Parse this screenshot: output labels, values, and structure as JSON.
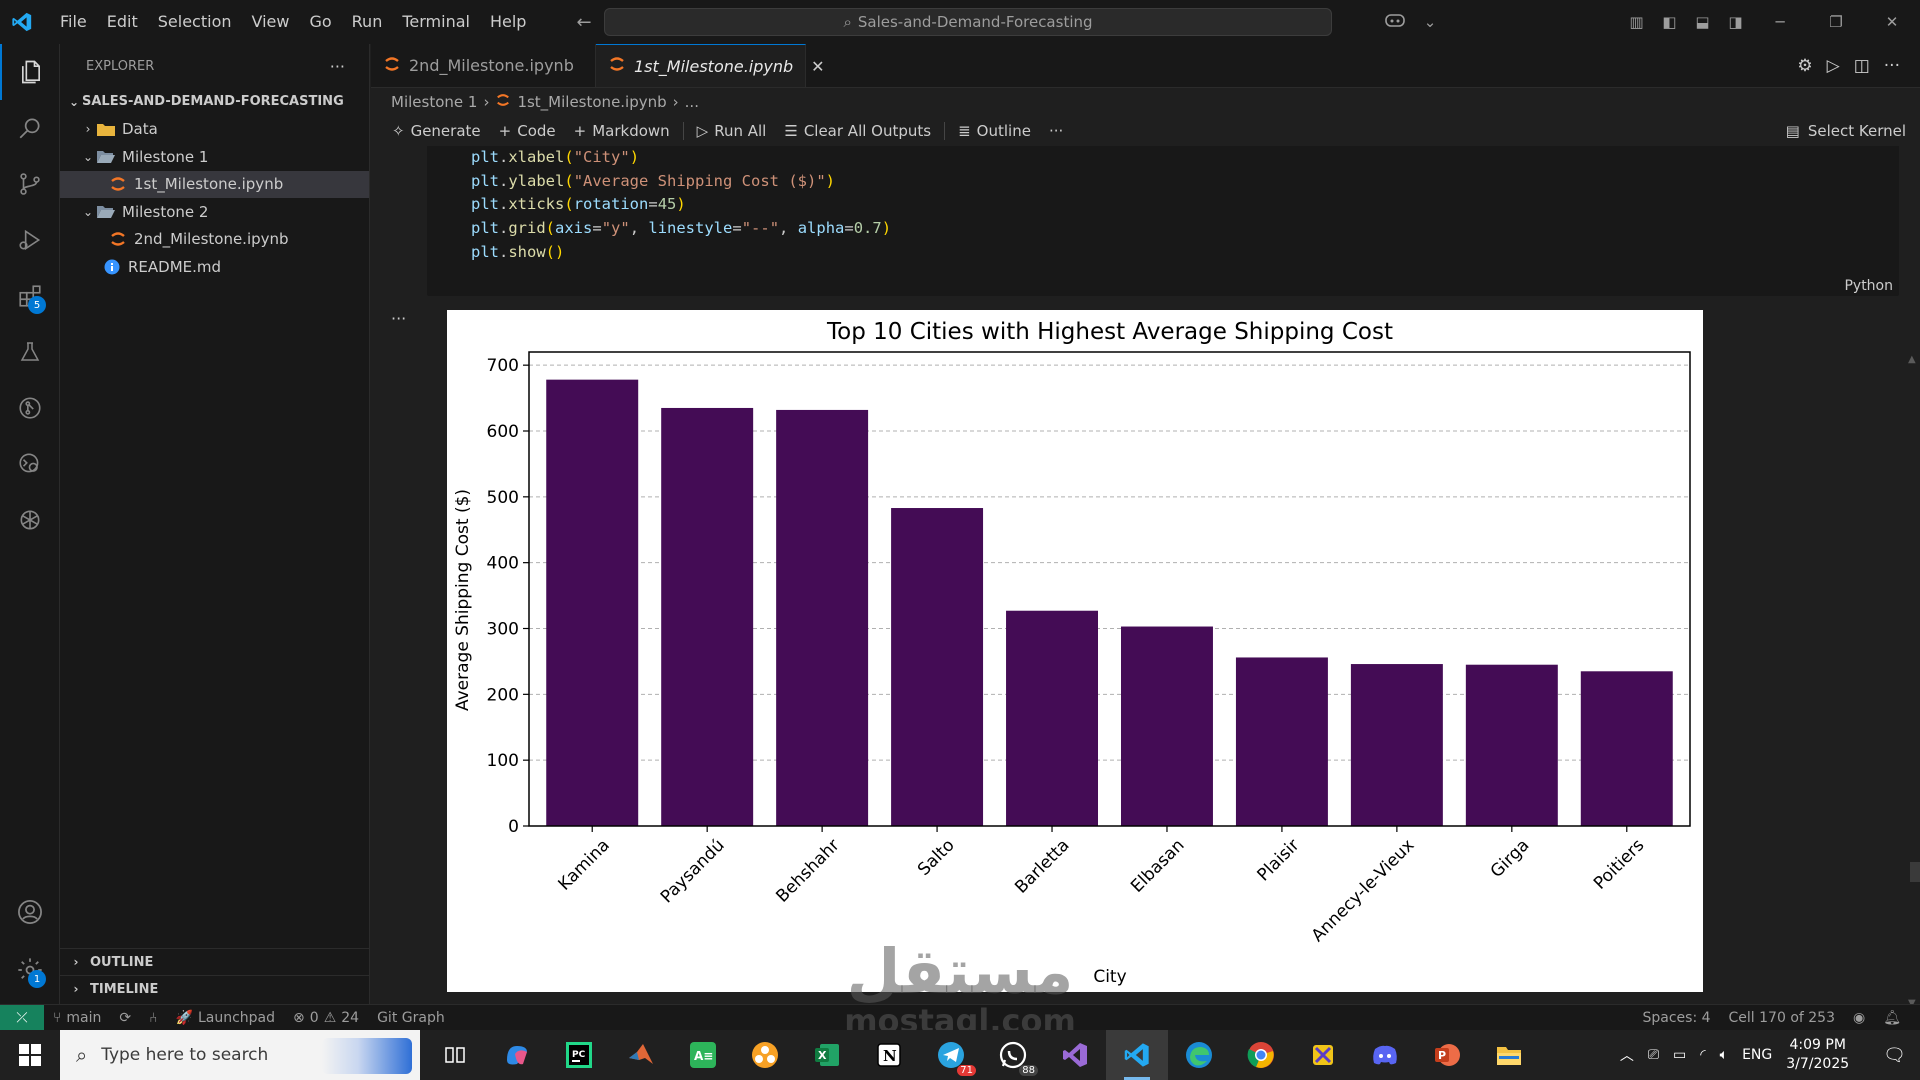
{
  "titlebar": {
    "menu": [
      "File",
      "Edit",
      "Selection",
      "View",
      "Go",
      "Run",
      "Terminal",
      "Help"
    ],
    "search": "Sales-and-Demand-Forecasting"
  },
  "activitybar": {
    "extensions_badge": "5",
    "settings_badge": "1"
  },
  "sidebar": {
    "title": "EXPLORER",
    "more": "···",
    "root": "SALES-AND-DEMAND-FORECASTING",
    "items": [
      {
        "label": "Data",
        "type": "folder"
      },
      {
        "label": "Milestone 1",
        "type": "folder-open"
      },
      {
        "label": "1st_Milestone.ipynb",
        "type": "notebook"
      },
      {
        "label": "Milestone 2",
        "type": "folder-open"
      },
      {
        "label": "2nd_Milestone.ipynb",
        "type": "notebook"
      },
      {
        "label": "README.md",
        "type": "info"
      }
    ],
    "outline": "OUTLINE",
    "timeline": "TIMELINE"
  },
  "tabs": [
    {
      "label": "2nd_Milestone.ipynb",
      "active": false
    },
    {
      "label": "1st_Milestone.ipynb",
      "active": true,
      "close": "✕"
    }
  ],
  "breadcrumb": {
    "folder": "Milestone 1",
    "file": "1st_Milestone.ipynb",
    "more": "..."
  },
  "toolbar": {
    "generate": "Generate",
    "code": "Code",
    "markdown": "Markdown",
    "run_all": "Run All",
    "clear": "Clear All Outputs",
    "outline": "Outline",
    "more": "···",
    "kernel": "Select Kernel"
  },
  "code": {
    "lines": [
      "plt.xlabel(\"City\")",
      "plt.ylabel(\"Average Shipping Cost ($)\")",
      "plt.xticks(rotation=45)",
      "plt.grid(axis=\"y\", linestyle=\"--\", alpha=0.7)",
      "plt.show()"
    ],
    "language": "Python"
  },
  "output_more": "···",
  "chart_data": {
    "type": "bar",
    "title": "Top 10 Cities with Highest Average Shipping Cost",
    "xlabel": "City",
    "ylabel": "Average Shipping Cost ($)",
    "categories": [
      "Kamina",
      "Paysandú",
      "Behshahr",
      "Salto",
      "Barletta",
      "Elbasan",
      "Plaisir",
      "Annecy-le-Vieux",
      "Girga",
      "Poitiers"
    ],
    "values": [
      678,
      635,
      632,
      483,
      327,
      303,
      256,
      246,
      245,
      235
    ],
    "ylim": [
      0,
      720
    ],
    "yticks": [
      0,
      100,
      200,
      300,
      400,
      500,
      600,
      700
    ],
    "color": "#440c55",
    "grid": "y-dashed"
  },
  "statusbar": {
    "branch": "main",
    "launchpad": "Launchpad",
    "errors": "0",
    "warnings": "24",
    "gitgraph": "Git Graph",
    "spaces": "Spaces: 4",
    "cell": "Cell 170 of 253"
  },
  "taskbar": {
    "search_placeholder": "Type here to search",
    "telegram_count": "71",
    "whatsapp_count": "88",
    "lang": "ENG",
    "time": "4:09 PM",
    "date": "3/7/2025"
  },
  "watermark": {
    "arabic": "مستقل",
    "latin": "mostaql.com"
  }
}
